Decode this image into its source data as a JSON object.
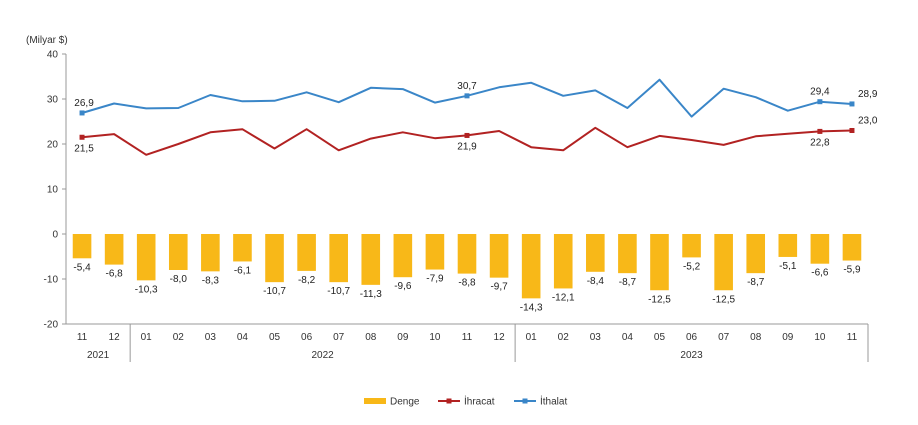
{
  "chart_data": {
    "type": "bar+line",
    "unit_label": "(Milyar $)",
    "ylim": [
      -20,
      40
    ],
    "yticks": [
      -20,
      -10,
      0,
      10,
      20,
      30,
      40
    ],
    "categories": [
      "11",
      "12",
      "01",
      "02",
      "03",
      "04",
      "05",
      "06",
      "07",
      "08",
      "09",
      "10",
      "11",
      "12",
      "01",
      "02",
      "03",
      "04",
      "05",
      "06",
      "07",
      "08",
      "09",
      "10",
      "11"
    ],
    "years": [
      {
        "label": "2021",
        "start": 0,
        "end": 1
      },
      {
        "label": "2022",
        "start": 2,
        "end": 13
      },
      {
        "label": "2023",
        "start": 14,
        "end": 24
      }
    ],
    "series": [
      {
        "name": "Denge",
        "type": "bar",
        "color": "#F8B818",
        "values": [
          -5.4,
          -6.8,
          -10.3,
          -8.0,
          -8.3,
          -6.1,
          -10.7,
          -8.2,
          -10.7,
          -11.3,
          -9.6,
          -7.9,
          -8.8,
          -9.7,
          -14.3,
          -12.1,
          -8.4,
          -8.7,
          -12.5,
          -5.2,
          -12.5,
          -8.7,
          -5.1,
          -6.6,
          -5.9
        ],
        "labels": [
          "-5,4",
          "-6,8",
          "-10,3",
          "-8,0",
          "-8,3",
          "-6,1",
          "-10,7",
          "-8,2",
          "-10,7",
          "-11,3",
          "-9,6",
          "-7,9",
          "-8,8",
          "-9,7",
          "-14,3",
          "-12,1",
          "-8,4",
          "-8,7",
          "-12,5",
          "-5,2",
          "-12,5",
          "-8,7",
          "-5,1",
          "-6,6",
          "-5,9"
        ]
      },
      {
        "name": "İhracat",
        "type": "line",
        "color": "#B22222",
        "values": [
          21.5,
          22.2,
          17.6,
          20.0,
          22.6,
          23.3,
          19.0,
          23.3,
          18.6,
          21.2,
          22.6,
          21.3,
          21.9,
          22.9,
          19.3,
          18.6,
          23.6,
          19.3,
          21.8,
          20.9,
          19.8,
          21.7,
          22.3,
          22.8,
          23.0
        ],
        "point_labels": [
          {
            "index": 0,
            "text": "21,5"
          },
          {
            "index": 12,
            "text": "21,9"
          },
          {
            "index": 23,
            "text": "22,8"
          },
          {
            "index": 24,
            "text": "23,0"
          }
        ]
      },
      {
        "name": "İthalat",
        "type": "line",
        "color": "#3A86C8",
        "values": [
          26.9,
          29.0,
          27.9,
          28.0,
          30.9,
          29.5,
          29.6,
          31.5,
          29.3,
          32.5,
          32.2,
          29.2,
          30.7,
          32.6,
          33.6,
          30.7,
          31.9,
          28.0,
          34.3,
          26.1,
          32.3,
          30.4,
          27.4,
          29.4,
          28.9
        ],
        "point_labels": [
          {
            "index": 0,
            "text": "26,9"
          },
          {
            "index": 12,
            "text": "30,7"
          },
          {
            "index": 23,
            "text": "29,4"
          },
          {
            "index": 24,
            "text": "28,9"
          }
        ]
      }
    ],
    "legend_position": "bottom-center",
    "grid": false
  }
}
